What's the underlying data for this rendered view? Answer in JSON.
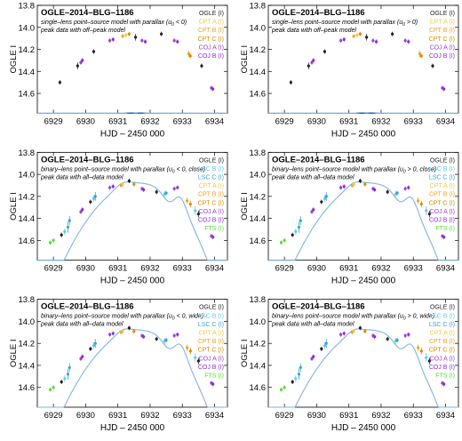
{
  "figure": {
    "colors": {
      "model_curve": "#7fb4e6",
      "OGLE": "#222222",
      "CPT A": "#f5c842",
      "CPT B": "#f0a020",
      "CPT C": "#d98a00",
      "COJ A": "#a040d0",
      "COJ B": "#8a2be2",
      "LSC B": "#66c8e8",
      "LSC C": "#3aa0d8",
      "FTS": "#55dd33"
    }
  },
  "chart_data": [
    {
      "type": "line",
      "title": "OGLE–2014–BLG–1186",
      "subtitle_main": "single–lens point–source model with parallax (u",
      "subtitle_sub": "0",
      "subtitle_rel": " < 0)",
      "subtitle_line2": "peak data with off–peak model",
      "xlabel": "HJD – 2450 000",
      "ylabel": "OGLE I",
      "xlim": [
        6928.5,
        6934.4
      ],
      "ylim": [
        14.78,
        13.8
      ],
      "xticks": [
        "6929",
        "6930",
        "6931",
        "6932",
        "6933",
        "6934"
      ],
      "yticks": [
        "13.8",
        "14.0",
        "14.2",
        "14.4",
        "14.6"
      ],
      "legend": [
        "OGLE (I)",
        "CPT A (I)",
        "CPT B (I)",
        "CPT C (I)",
        "COJ A (I)",
        "COJ B (I)"
      ],
      "model": "single"
    },
    {
      "type": "line",
      "title": "OGLE–2014–BLG–1186",
      "subtitle_main": "single–lens point–source model with parallax (u",
      "subtitle_sub": "0",
      "subtitle_rel": " > 0)",
      "subtitle_line2": "peak data with off–peak model",
      "xlabel": "HJD – 2450 000",
      "ylabel": "OGLE I",
      "xlim": [
        6928.5,
        6934.4
      ],
      "ylim": [
        14.78,
        13.8
      ],
      "xticks": [
        "6929",
        "6930",
        "6931",
        "6932",
        "6933",
        "6934"
      ],
      "yticks": [
        "13.8",
        "14.0",
        "14.2",
        "14.4",
        "14.6"
      ],
      "legend": [
        "OGLE (I)",
        "CPT A (I)",
        "CPT B (I)",
        "CPT C (I)",
        "COJ A (I)",
        "COJ B (I)"
      ],
      "model": "single"
    },
    {
      "type": "line",
      "title": "OGLE–2014–BLG–1186",
      "subtitle_main": "binary–lens point–source model with parallax (u",
      "subtitle_sub": "0",
      "subtitle_rel": " < 0, close)",
      "subtitle_line2": "peak data with all–data model",
      "xlabel": "HJD – 2450 000",
      "ylabel": "OGLE I",
      "xlim": [
        6928.5,
        6934.4
      ],
      "ylim": [
        14.78,
        13.8
      ],
      "xticks": [
        "6929",
        "6930",
        "6931",
        "6932",
        "6933",
        "6934"
      ],
      "yticks": [
        "13.8",
        "14.0",
        "14.2",
        "14.4",
        "14.6"
      ],
      "legend": [
        "OGLE (I)",
        "LSC B (I)",
        "LSC C (I)",
        "CPT A (I)",
        "CPT B (I)",
        "CPT C (I)",
        "COJ A (I)",
        "COJ B (I)",
        "FTS (I)"
      ],
      "model": "binary"
    },
    {
      "type": "line",
      "title": "OGLE–2014–BLG–1186",
      "subtitle_main": "binary–lens point–source model with parallax (u",
      "subtitle_sub": "0",
      "subtitle_rel": " > 0, close)",
      "subtitle_line2": "peak data with all–data model",
      "xlabel": "HJD – 2450 000",
      "ylabel": "OGLE I",
      "xlim": [
        6928.5,
        6934.4
      ],
      "ylim": [
        14.78,
        13.8
      ],
      "xticks": [
        "6929",
        "6930",
        "6931",
        "6932",
        "6933",
        "6934"
      ],
      "yticks": [
        "13.8",
        "14.0",
        "14.2",
        "14.4",
        "14.6"
      ],
      "legend": [
        "OGLE (I)",
        "LSC B (I)",
        "LSC C (I)",
        "CPT A (I)",
        "CPT B (I)",
        "CPT C (I)",
        "COJ A (I)",
        "COJ B (I)",
        "FTS (I)"
      ],
      "model": "binary"
    },
    {
      "type": "line",
      "title": "OGLE–2014–BLG–1186",
      "subtitle_main": "binary–lens point–source model with parallax (u",
      "subtitle_sub": "0",
      "subtitle_rel": " < 0, wide)",
      "subtitle_line2": "peak data with all–data model",
      "xlabel": "HJD – 2450 000",
      "ylabel": "OGLE I",
      "xlim": [
        6928.5,
        6934.4
      ],
      "ylim": [
        14.78,
        13.8
      ],
      "xticks": [
        "6929",
        "6930",
        "6931",
        "6932",
        "6933",
        "6934"
      ],
      "yticks": [
        "13.8",
        "14.0",
        "14.2",
        "14.4",
        "14.6"
      ],
      "legend": [
        "OGLE (I)",
        "LSC B (I)",
        "LSC C (I)",
        "CPT A (I)",
        "CPT B (I)",
        "CPT C (I)",
        "COJ A (I)",
        "COJ B (I)",
        "FTS (I)"
      ],
      "model": "binary"
    },
    {
      "type": "line",
      "title": "OGLE–2014–BLG–1186",
      "subtitle_main": "binary–lens point–source model with parallax (u",
      "subtitle_sub": "0",
      "subtitle_rel": " > 0, wide)",
      "subtitle_line2": "peak data with all–data model",
      "xlabel": "HJD – 2450 000",
      "ylabel": "OGLE I",
      "xlim": [
        6928.5,
        6934.4
      ],
      "ylim": [
        14.78,
        13.8
      ],
      "xticks": [
        "6929",
        "6930",
        "6931",
        "6932",
        "6933",
        "6934"
      ],
      "yticks": [
        "13.8",
        "14.0",
        "14.2",
        "14.4",
        "14.6"
      ],
      "legend": [
        "OGLE (I)",
        "LSC B (I)",
        "LSC C (I)",
        "CPT A (I)",
        "CPT B (I)",
        "CPT C (I)",
        "COJ A (I)",
        "COJ B (I)",
        "FTS (I)"
      ],
      "model": "binary"
    }
  ]
}
